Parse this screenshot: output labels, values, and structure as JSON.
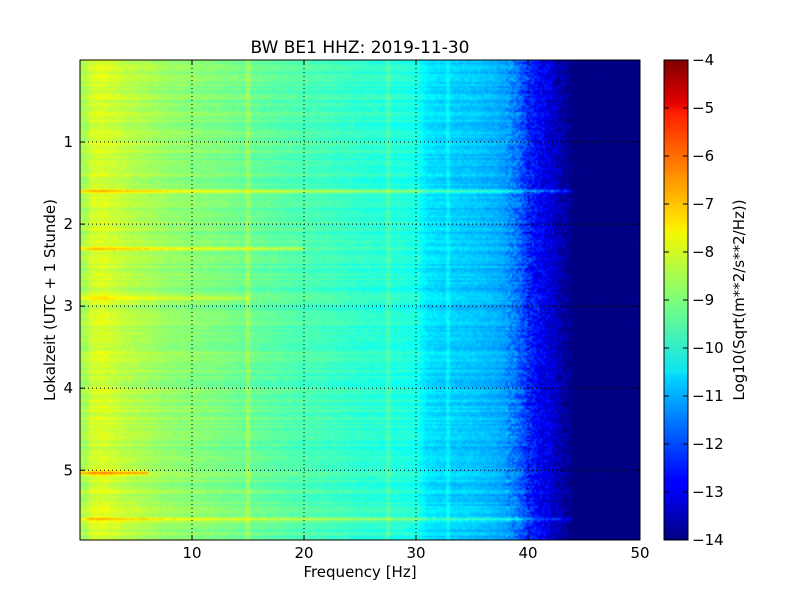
{
  "chart_data": {
    "type": "heatmap",
    "title": "BW BE1 HHZ: 2019-11-30",
    "xlabel": "Frequency [Hz]",
    "ylabel": "Lokalzeit (UTC + 1 Stunde)",
    "xlim": [
      0,
      50
    ],
    "ylim": [
      5.85,
      0.0
    ],
    "x_ticks": [
      10,
      20,
      30,
      40,
      50
    ],
    "y_ticks": [
      1,
      2,
      3,
      4,
      5
    ],
    "grid": true,
    "colormap": "jet",
    "colorbar": {
      "label": "Log10(Sqrt(m**2/s**2/Hz))",
      "range": [
        -14,
        -4
      ],
      "ticks": [
        -4,
        -5,
        -6,
        -7,
        -8,
        -9,
        -10,
        -11,
        -12,
        -13,
        -14
      ]
    },
    "frequency_profile": {
      "x": [
        0.5,
        1,
        2,
        4,
        6,
        8,
        10,
        12,
        15,
        18,
        20,
        22,
        25,
        28,
        30,
        31,
        33,
        35,
        37,
        38,
        39,
        40,
        41,
        42,
        43,
        44,
        45,
        50
      ],
      "values": [
        -8.6,
        -8.2,
        -8.1,
        -8.4,
        -8.6,
        -8.8,
        -8.9,
        -9.0,
        -9.2,
        -9.4,
        -9.5,
        -9.6,
        -9.8,
        -9.9,
        -10.0,
        -10.5,
        -10.7,
        -10.8,
        -11.0,
        -11.2,
        -11.6,
        -12.3,
        -12.8,
        -13.1,
        -13.6,
        -14.0,
        -14.0,
        -14.0
      ]
    },
    "bright_bands": [
      {
        "time": 1.6,
        "strength": 1.4,
        "xmax": 45
      },
      {
        "time": 2.3,
        "strength": 0.9,
        "xmax": 20
      },
      {
        "time": 2.9,
        "strength": 0.6,
        "xmax": 15
      },
      {
        "time": 5.03,
        "strength": 1.6,
        "xmax": 6
      },
      {
        "time": 5.6,
        "strength": 1.1,
        "xmax": 44
      }
    ],
    "vertical_lines": [
      {
        "frequency": 15.0,
        "strength": 0.5
      },
      {
        "frequency": 27.5,
        "strength": 0.4
      },
      {
        "frequency": 32.8,
        "strength": 0.35
      }
    ]
  }
}
